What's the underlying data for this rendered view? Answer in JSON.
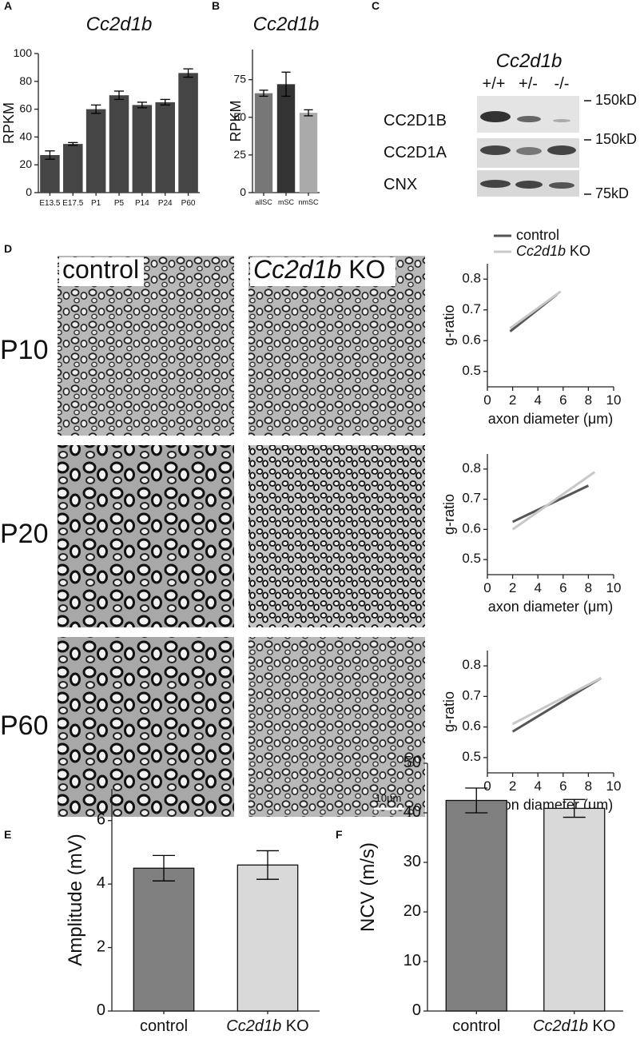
{
  "chart_data": [
    {
      "type": "bar",
      "panel": "A",
      "title": "Cc2d1b",
      "y_label": "RPKM",
      "categories": [
        "E13.5",
        "E17.5",
        "P1",
        "P5",
        "P14",
        "P24",
        "P60"
      ],
      "values": [
        27,
        35,
        60,
        70,
        63,
        65,
        86
      ],
      "errors": [
        3,
        1,
        3,
        3,
        2,
        2,
        3
      ],
      "color": "#454545",
      "ylim": [
        0,
        100
      ],
      "yticks": [
        0,
        20,
        40,
        60,
        80,
        100
      ]
    },
    {
      "type": "bar",
      "panel": "B",
      "title": "Cc2d1b",
      "y_label": "RPKM",
      "categories": [
        "allSC",
        "mSC",
        "nmSC"
      ],
      "values": [
        66,
        72,
        53
      ],
      "errors": [
        2,
        8,
        2
      ],
      "colors": [
        "#777777",
        "#333333",
        "#aaaaaa"
      ],
      "ylim": [
        0,
        95
      ],
      "yticks": [
        0,
        25,
        50,
        75
      ]
    },
    {
      "type": "line",
      "panel": "D",
      "x_label": "axon diameter (μm)",
      "y_label": "g-ratio",
      "series": [
        {
          "name": "control",
          "color": "#555555",
          "x": [
            1.8,
            5.5
          ],
          "values": [
            0.63,
            0.75
          ]
        },
        {
          "name": "Cc2d1b KO",
          "color": "#c8c8c8",
          "x": [
            1.8,
            5.8
          ],
          "values": [
            0.64,
            0.76
          ]
        }
      ],
      "xlim": [
        0,
        10
      ],
      "ylim": [
        0.45,
        0.85
      ],
      "xticks": [
        0,
        2,
        4,
        6,
        8,
        10
      ],
      "yticks": [
        0.5,
        0.6,
        0.7,
        0.8
      ]
    },
    {
      "type": "line",
      "x_label": "axon diameter (μm)",
      "y_label": "g-ratio",
      "series": [
        {
          "color": "#555555",
          "x": [
            2,
            8
          ],
          "values": [
            0.625,
            0.745
          ]
        },
        {
          "color": "#c8c8c8",
          "x": [
            2,
            8.5
          ],
          "values": [
            0.6,
            0.79
          ]
        }
      ],
      "xlim": [
        0,
        10
      ],
      "ylim": [
        0.45,
        0.85
      ],
      "xticks": [
        0,
        2,
        4,
        6,
        8,
        10
      ],
      "yticks": [
        0.5,
        0.6,
        0.7,
        0.8
      ]
    },
    {
      "type": "line",
      "x_label": "axon diameter (μm)",
      "y_label": "g-ratio",
      "series": [
        {
          "color": "#555555",
          "x": [
            2,
            9
          ],
          "values": [
            0.585,
            0.76
          ]
        },
        {
          "color": "#c8c8c8",
          "x": [
            2,
            9
          ],
          "values": [
            0.61,
            0.76
          ]
        }
      ],
      "xlim": [
        0,
        10
      ],
      "ylim": [
        0.45,
        0.85
      ],
      "xticks": [
        0,
        2,
        4,
        6,
        8,
        10
      ],
      "yticks": [
        0.5,
        0.6,
        0.7,
        0.8
      ]
    },
    {
      "type": "bar",
      "panel": "E",
      "y_label": "Amplitude (mV)",
      "categories": [
        "control",
        "Cc2d1b KO"
      ],
      "values": [
        4.5,
        4.6
      ],
      "errors": [
        0.4,
        0.45
      ],
      "colors": [
        "#808080",
        "#d9d9d9"
      ],
      "ylim": [
        0,
        7
      ],
      "yticks": [
        0,
        2,
        4,
        6
      ]
    },
    {
      "type": "bar",
      "panel": "F",
      "y_label": "NCV (m/s)",
      "categories": [
        "control",
        "Cc2d1b KO"
      ],
      "values": [
        42.5,
        40.9
      ],
      "errors": [
        2.5,
        1.8
      ],
      "colors": [
        "#808080",
        "#d9d9d9"
      ],
      "ylim": [
        0,
        50
      ],
      "yticks": [
        0,
        10,
        20,
        30,
        40,
        50
      ]
    }
  ],
  "blot": {
    "panel": "C",
    "title": "Cc2d1b",
    "lanes": [
      "+/+",
      "+/-",
      "-/-"
    ],
    "rows": [
      "CC2D1B",
      "CC2D1A",
      "CNX"
    ],
    "markers": [
      "150kD",
      "150kD",
      "75kD"
    ]
  },
  "micrographs": {
    "columns": [
      "control",
      "Cc2d1b KO"
    ],
    "rows": [
      "P10",
      "P20",
      "P60"
    ],
    "scale_bar": "10μm"
  }
}
